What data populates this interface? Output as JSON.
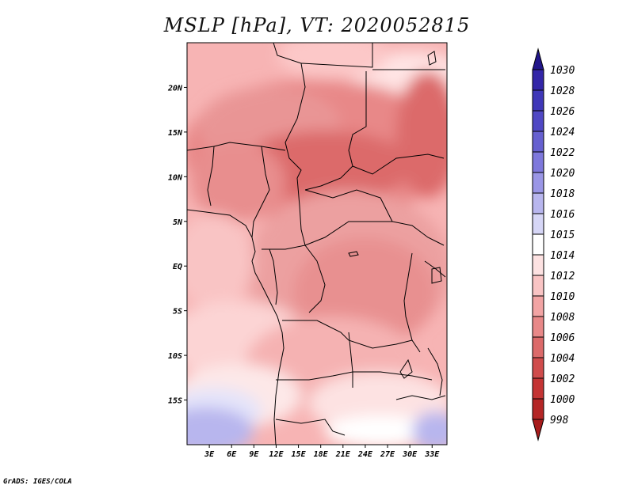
{
  "title": "MSLP [hPa], VT: 2020052815",
  "credit": "GrADS: IGES/COLA",
  "map": {
    "lon_range": [
      0,
      35
    ],
    "lat_range": [
      -20,
      25
    ],
    "lon_ticks": [
      {
        "value": 3,
        "label": "3E"
      },
      {
        "value": 6,
        "label": "6E"
      },
      {
        "value": 9,
        "label": "9E"
      },
      {
        "value": 12,
        "label": "12E"
      },
      {
        "value": 15,
        "label": "15E"
      },
      {
        "value": 18,
        "label": "18E"
      },
      {
        "value": 21,
        "label": "21E"
      },
      {
        "value": 24,
        "label": "24E"
      },
      {
        "value": 27,
        "label": "27E"
      },
      {
        "value": 30,
        "label": "30E"
      },
      {
        "value": 33,
        "label": "33E"
      }
    ],
    "lat_ticks": [
      {
        "value": 20,
        "label": "20N"
      },
      {
        "value": 15,
        "label": "15N"
      },
      {
        "value": 10,
        "label": "10N"
      },
      {
        "value": 5,
        "label": "5N"
      },
      {
        "value": 0,
        "label": "EQ"
      },
      {
        "value": -5,
        "label": "5S"
      },
      {
        "value": -10,
        "label": "10S"
      },
      {
        "value": -15,
        "label": "15S"
      }
    ]
  },
  "colorbar": {
    "levels": [
      {
        "label": "1030",
        "color": "#2a1a96"
      },
      {
        "label": "1028",
        "color": "#3326a8"
      },
      {
        "label": "1026",
        "color": "#3f37b8"
      },
      {
        "label": "1024",
        "color": "#5048c4"
      },
      {
        "label": "1022",
        "color": "#6660d0"
      },
      {
        "label": "1020",
        "color": "#7e78dc"
      },
      {
        "label": "1018",
        "color": "#9a96e6"
      },
      {
        "label": "1016",
        "color": "#b8b6ee"
      },
      {
        "label": "1015",
        "color": "#d6d6f6"
      },
      {
        "label": "1014",
        "color": "#ffffff"
      },
      {
        "label": "1012",
        "color": "#fde2e2"
      },
      {
        "label": "1010",
        "color": "#f9c4c4"
      },
      {
        "label": "1008",
        "color": "#f2a4a4"
      },
      {
        "label": "1006",
        "color": "#e88888"
      },
      {
        "label": "1004",
        "color": "#dc6a6a"
      },
      {
        "label": "1002",
        "color": "#d04c4c"
      },
      {
        "label": "1000",
        "color": "#c43434"
      },
      {
        "label": "998",
        "color": "#b42626"
      }
    ],
    "top_color": "#22168a",
    "bottom_color": "#a81c1c"
  }
}
